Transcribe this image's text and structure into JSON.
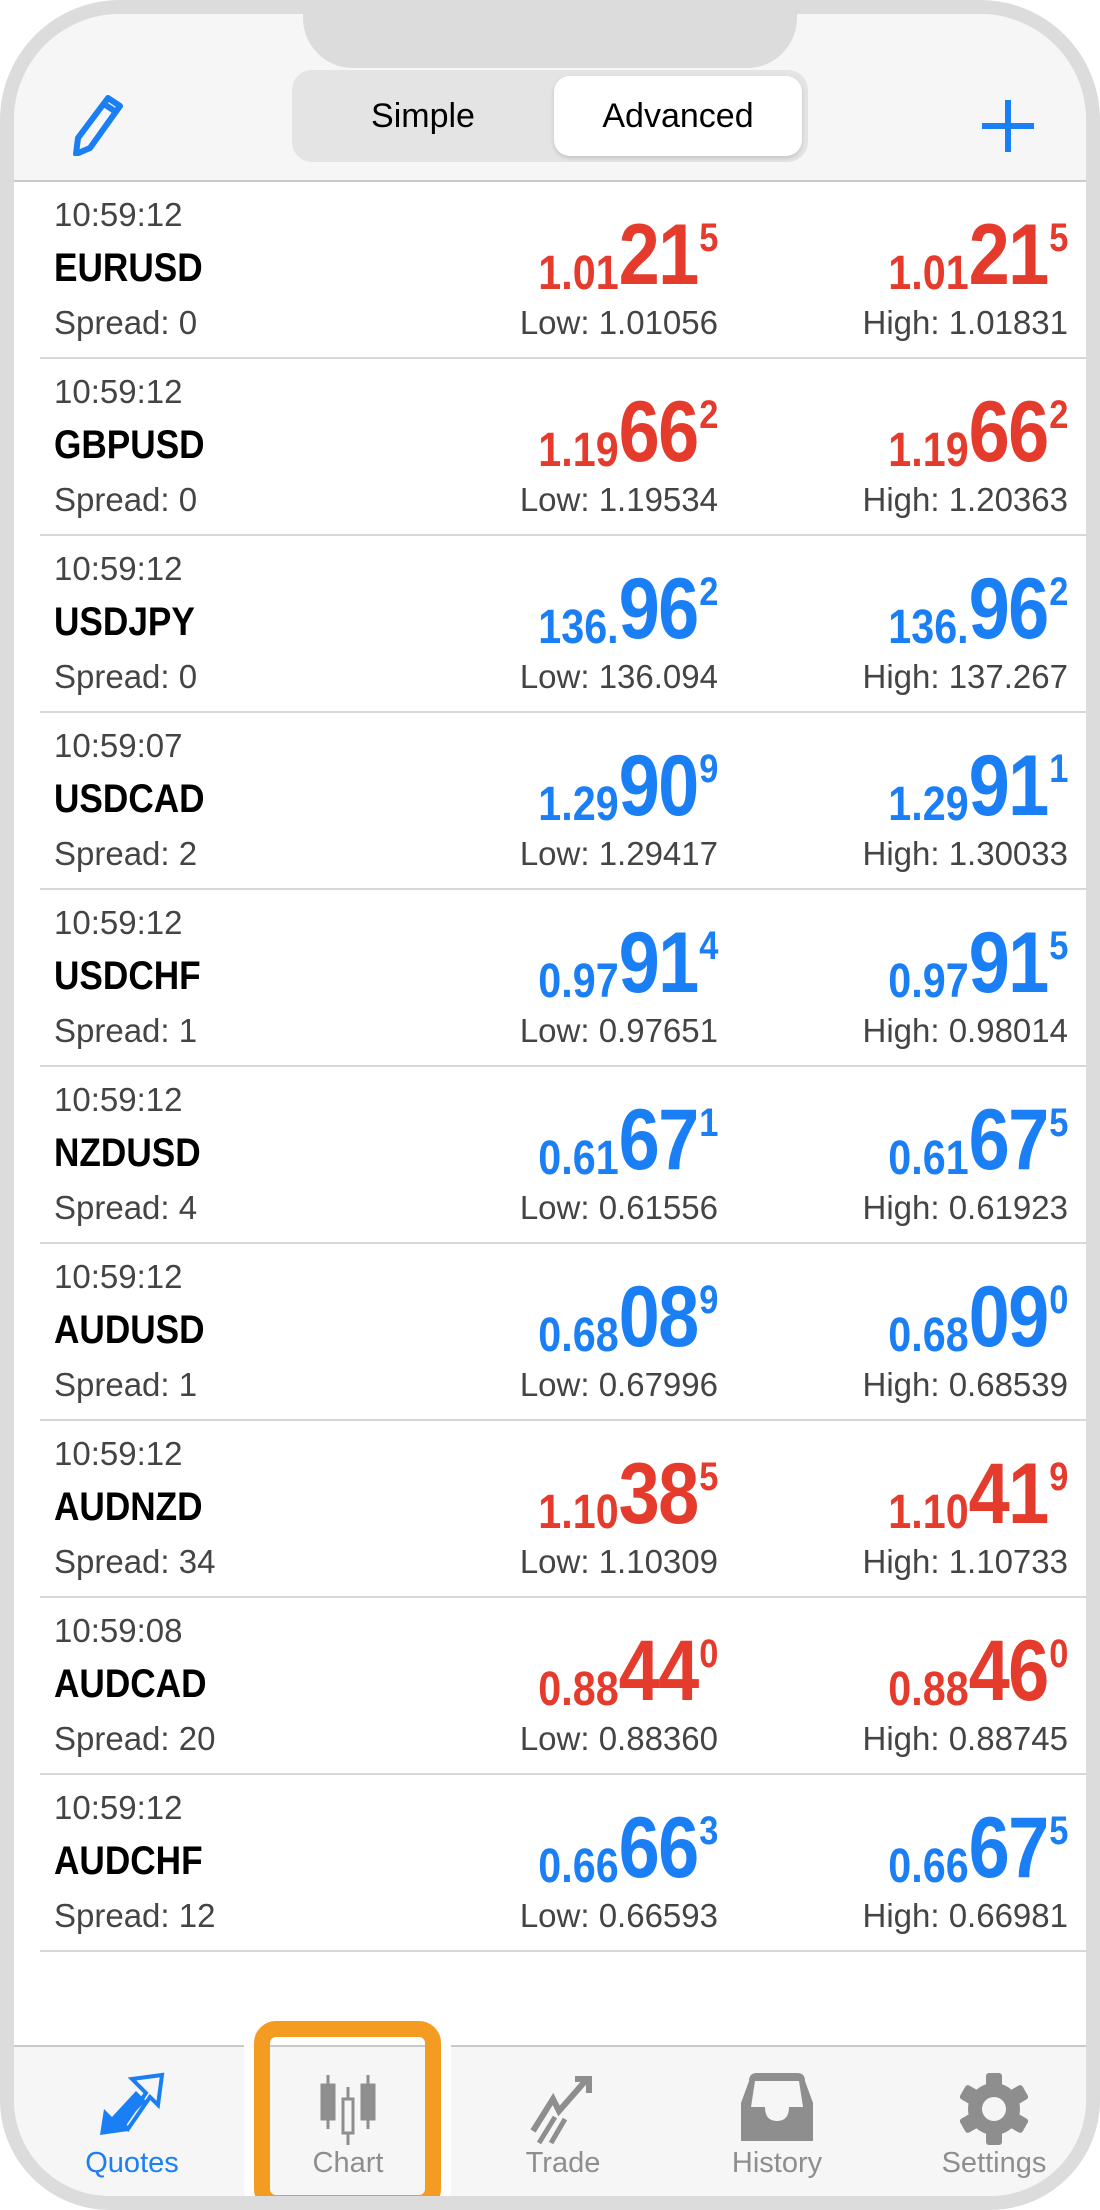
{
  "header": {
    "segments": [
      "Simple",
      "Advanced"
    ],
    "selected": "Advanced",
    "edit_icon": "pencil-icon",
    "add_icon": "plus-icon"
  },
  "colors": {
    "accent": "#1a7ef5",
    "down": "#e53b2c",
    "up": "#1a7ef5",
    "highlight": "#f39c21"
  },
  "quotes": [
    {
      "time": "10:59:12",
      "symbol": "EURUSD",
      "spread": "Spread: 0",
      "color": "red",
      "bid": {
        "pre": "1.01",
        "big": "21",
        "sup": "5"
      },
      "ask": {
        "pre": "1.01",
        "big": "21",
        "sup": "5"
      },
      "low": "Low: 1.01056",
      "high": "High: 1.01831"
    },
    {
      "time": "10:59:12",
      "symbol": "GBPUSD",
      "spread": "Spread: 0",
      "color": "red",
      "bid": {
        "pre": "1.19",
        "big": "66",
        "sup": "2"
      },
      "ask": {
        "pre": "1.19",
        "big": "66",
        "sup": "2"
      },
      "low": "Low: 1.19534",
      "high": "High: 1.20363"
    },
    {
      "time": "10:59:12",
      "symbol": "USDJPY",
      "spread": "Spread: 0",
      "color": "blue",
      "bid": {
        "pre": "136.",
        "big": "96",
        "sup": "2"
      },
      "ask": {
        "pre": "136.",
        "big": "96",
        "sup": "2"
      },
      "low": "Low: 136.094",
      "high": "High: 137.267"
    },
    {
      "time": "10:59:07",
      "symbol": "USDCAD",
      "spread": "Spread: 2",
      "color": "blue",
      "bid": {
        "pre": "1.29",
        "big": "90",
        "sup": "9"
      },
      "ask": {
        "pre": "1.29",
        "big": "91",
        "sup": "1"
      },
      "low": "Low: 1.29417",
      "high": "High: 1.30033"
    },
    {
      "time": "10:59:12",
      "symbol": "USDCHF",
      "spread": "Spread: 1",
      "color": "blue",
      "bid": {
        "pre": "0.97",
        "big": "91",
        "sup": "4"
      },
      "ask": {
        "pre": "0.97",
        "big": "91",
        "sup": "5"
      },
      "low": "Low: 0.97651",
      "high": "High: 0.98014"
    },
    {
      "time": "10:59:12",
      "symbol": "NZDUSD",
      "spread": "Spread: 4",
      "color": "blue",
      "bid": {
        "pre": "0.61",
        "big": "67",
        "sup": "1"
      },
      "ask": {
        "pre": "0.61",
        "big": "67",
        "sup": "5"
      },
      "low": "Low: 0.61556",
      "high": "High: 0.61923"
    },
    {
      "time": "10:59:12",
      "symbol": "AUDUSD",
      "spread": "Spread: 1",
      "color": "blue",
      "bid": {
        "pre": "0.68",
        "big": "08",
        "sup": "9"
      },
      "ask": {
        "pre": "0.68",
        "big": "09",
        "sup": "0"
      },
      "low": "Low: 0.67996",
      "high": "High: 0.68539"
    },
    {
      "time": "10:59:12",
      "symbol": "AUDNZD",
      "spread": "Spread: 34",
      "color": "red",
      "bid": {
        "pre": "1.10",
        "big": "38",
        "sup": "5"
      },
      "ask": {
        "pre": "1.10",
        "big": "41",
        "sup": "9"
      },
      "low": "Low: 1.10309",
      "high": "High: 1.10733"
    },
    {
      "time": "10:59:08",
      "symbol": "AUDCAD",
      "spread": "Spread: 20",
      "color": "red",
      "bid": {
        "pre": "0.88",
        "big": "44",
        "sup": "0"
      },
      "ask": {
        "pre": "0.88",
        "big": "46",
        "sup": "0"
      },
      "low": "Low: 0.88360",
      "high": "High: 0.88745"
    },
    {
      "time": "10:59:12",
      "symbol": "AUDCHF",
      "spread": "Spread: 12",
      "color": "blue",
      "bid": {
        "pre": "0.66",
        "big": "66",
        "sup": "3"
      },
      "ask": {
        "pre": "0.66",
        "big": "67",
        "sup": "5"
      },
      "low": "Low: 0.66593",
      "high": "High: 0.66981"
    }
  ],
  "tabs": [
    {
      "label": "Quotes",
      "icon": "quotes-arrows-icon",
      "active": true
    },
    {
      "label": "Chart",
      "icon": "candlestick-chart-icon",
      "active": false,
      "highlighted": true
    },
    {
      "label": "Trade",
      "icon": "trade-trend-icon",
      "active": false
    },
    {
      "label": "History",
      "icon": "inbox-tray-icon",
      "active": false
    },
    {
      "label": "Settings",
      "icon": "gear-icon",
      "active": false
    }
  ]
}
